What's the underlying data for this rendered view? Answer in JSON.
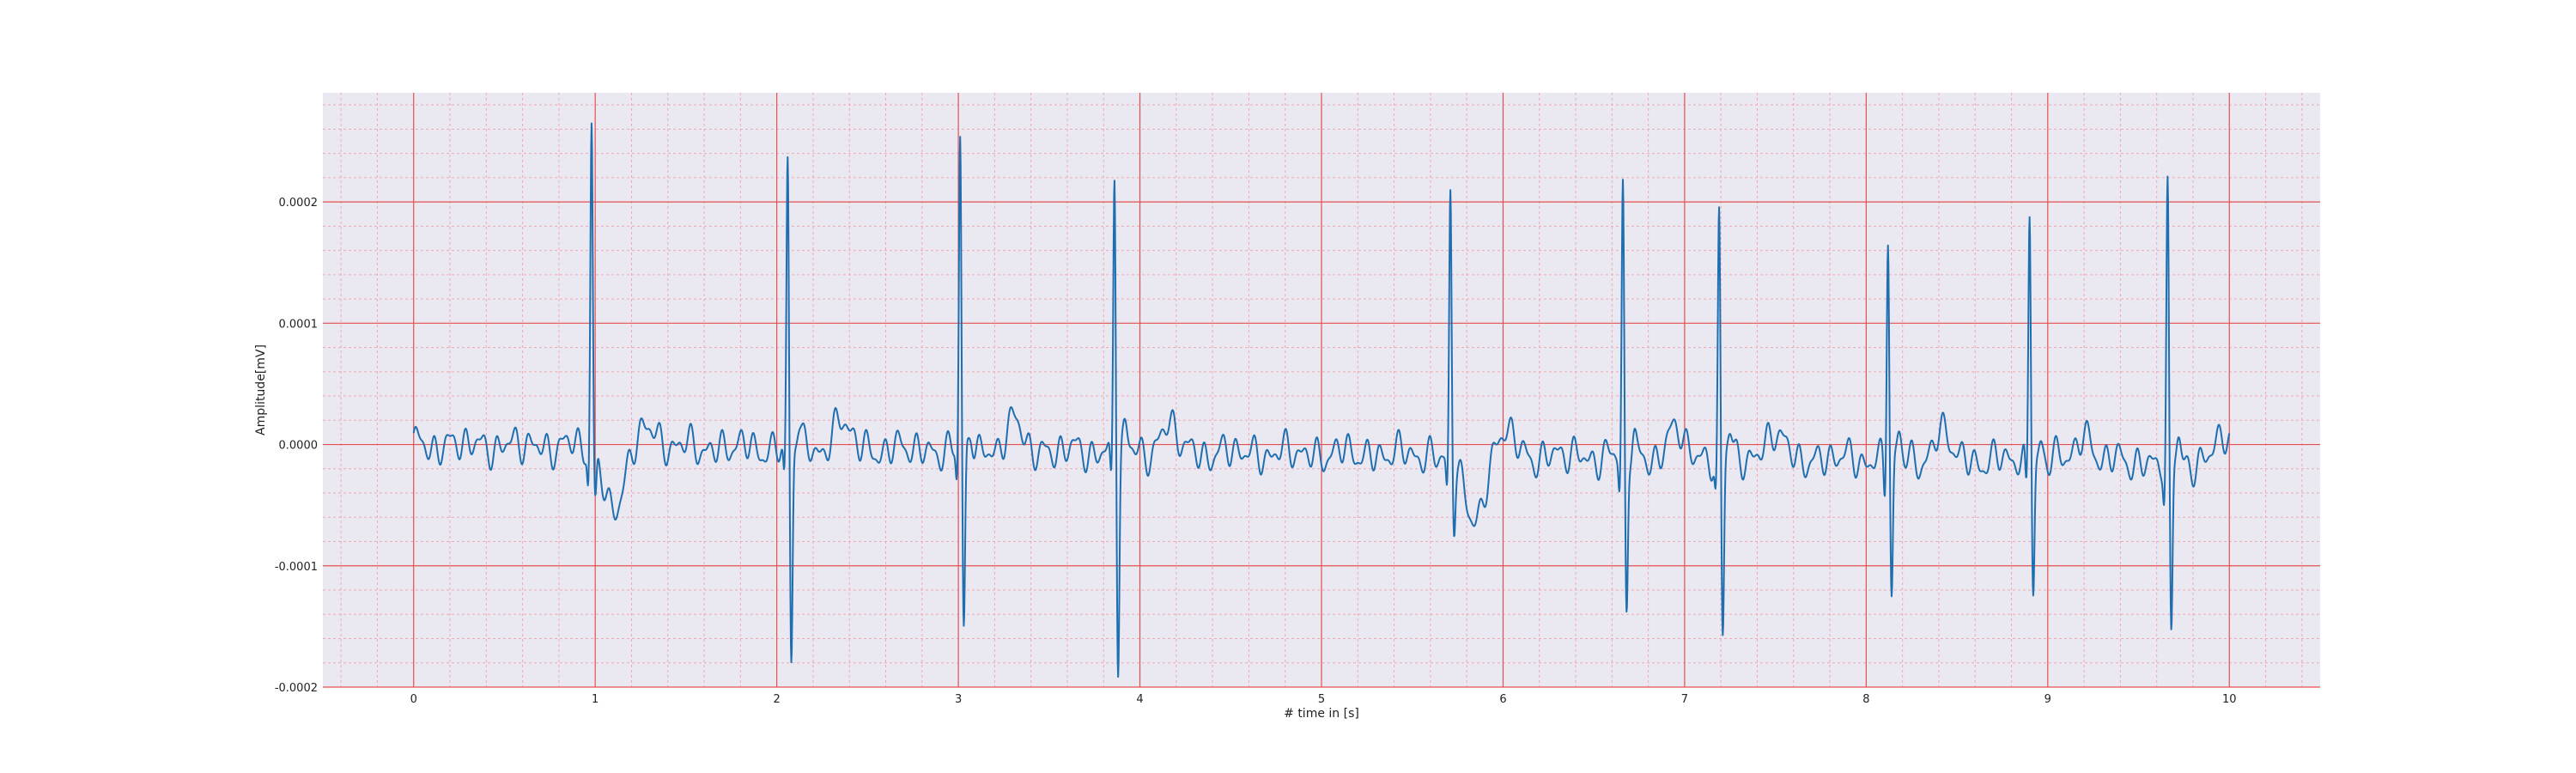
{
  "chart_data": {
    "type": "line",
    "xlabel": "# time in [s]",
    "ylabel": "Amplitude[mV]",
    "xlim": [
      -0.5,
      10.5
    ],
    "ylim": [
      -0.0002,
      0.00029
    ],
    "xticks": [
      0,
      1,
      2,
      3,
      4,
      5,
      6,
      7,
      8,
      9,
      10
    ],
    "xtick_labels": [
      "0",
      "1",
      "2",
      "3",
      "4",
      "5",
      "6",
      "7",
      "8",
      "9",
      "10"
    ],
    "yticks": [
      -0.0002,
      -0.0001,
      0.0,
      0.0001,
      0.0002
    ],
    "ytick_labels": [
      "-0.0002",
      "-0.0001",
      "0.0000",
      "0.0001",
      "0.0002"
    ],
    "grid": true,
    "minor_grid": true,
    "colors": {
      "background": "#eae8f1",
      "major_grid": "#e45050",
      "minor_grid": "#f0a8b4",
      "line": "#1f6fb0"
    },
    "series": [
      {
        "beats": [
          {
            "t": 0.98,
            "r": 0.00027,
            "s": -4e-05,
            "stSag": true
          },
          {
            "t": 2.06,
            "r": 0.00024,
            "s": -0.000178,
            "stSag": false
          },
          {
            "t": 3.01,
            "r": 0.000255,
            "s": -0.000153,
            "stSag": false
          },
          {
            "t": 3.86,
            "r": 0.000235,
            "s": -0.000175,
            "stSag": false
          },
          {
            "t": 5.71,
            "r": 0.00022,
            "s": -5e-05,
            "stSag": true
          },
          {
            "t": 6.66,
            "r": 0.00022,
            "s": -0.000131,
            "stSag": false
          },
          {
            "t": 7.19,
            "r": 0.0002,
            "s": -0.000148,
            "stSag": false
          },
          {
            "t": 8.12,
            "r": 0.00019,
            "s": -0.000118,
            "stSag": false
          },
          {
            "t": 8.9,
            "r": 0.000212,
            "s": -0.000105,
            "stSag": false
          },
          {
            "t": 9.66,
            "r": 0.000223,
            "s": -0.00015,
            "stSag": false
          }
        ],
        "t_start": 0,
        "t_end": 10,
        "baseline_start": 0.0,
        "baseline_end": -1.5e-05
      }
    ]
  }
}
